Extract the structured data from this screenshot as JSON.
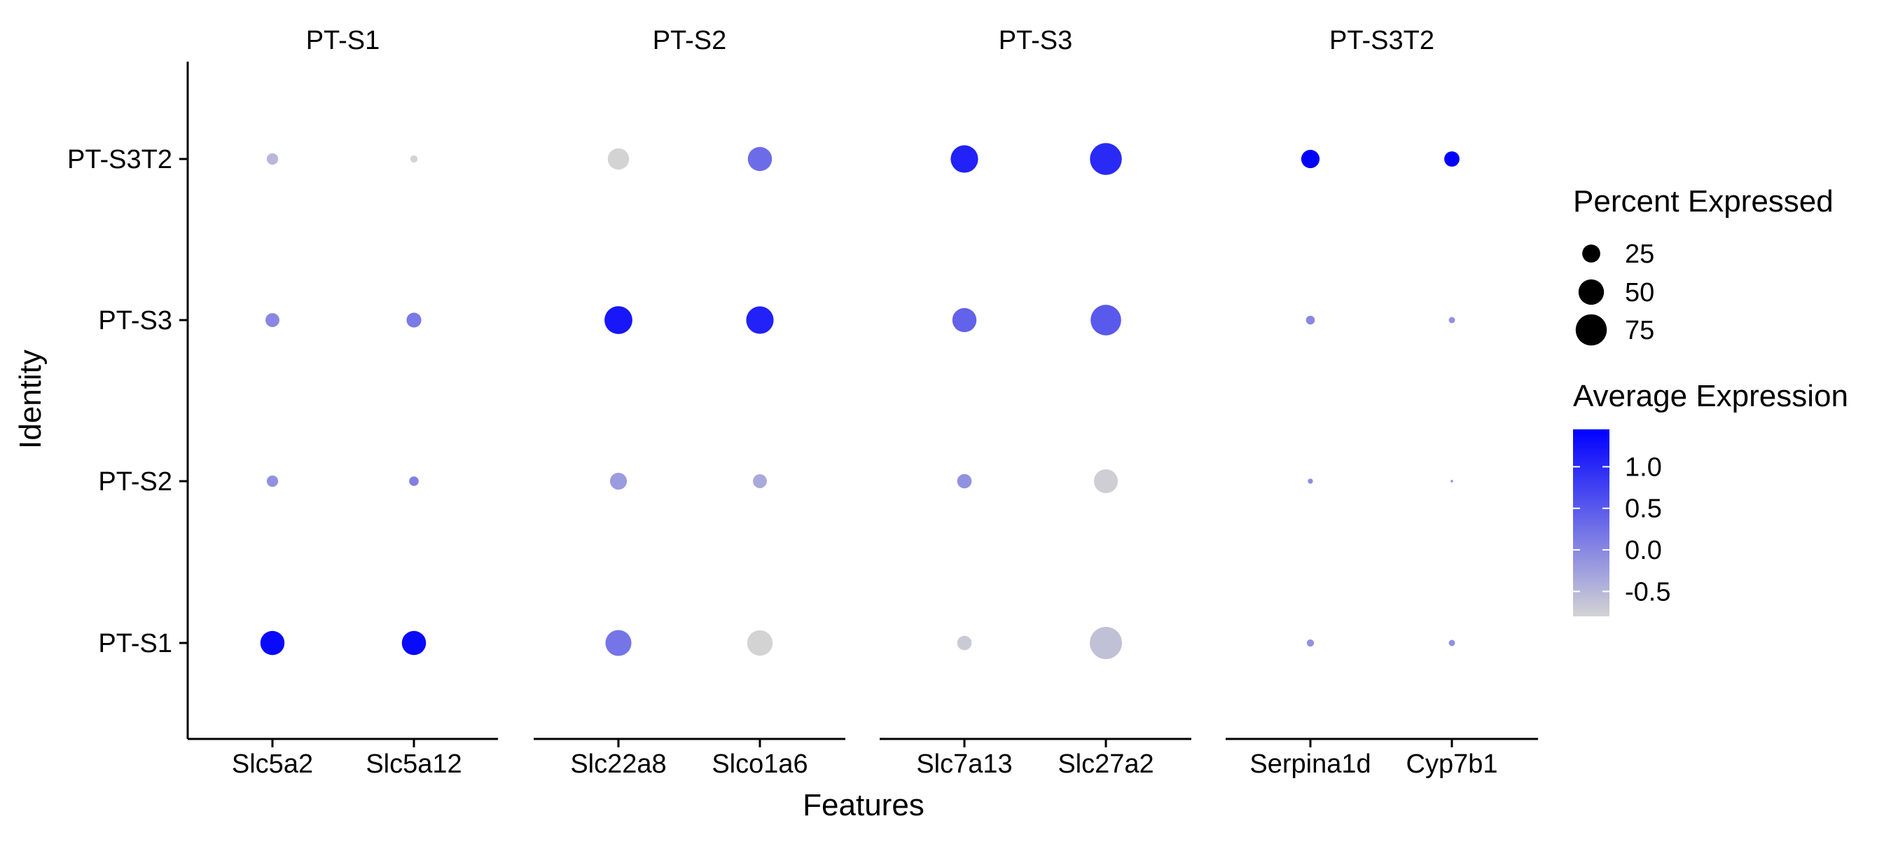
{
  "chart_data": {
    "type": "dotplot",
    "xlabel": "Features",
    "ylabel": "Identity",
    "identities": [
      "PT-S1",
      "PT-S2",
      "PT-S3",
      "PT-S3T2"
    ],
    "groups": [
      {
        "name": "PT-S1",
        "features": [
          "Slc5a2",
          "Slc5a12"
        ]
      },
      {
        "name": "PT-S2",
        "features": [
          "Slc22a8",
          "Slco1a6"
        ]
      },
      {
        "name": "PT-S3",
        "features": [
          "Slc7a13",
          "Slc27a2"
        ]
      },
      {
        "name": "PT-S3T2",
        "features": [
          "Serpina1d",
          "Cyp7b1"
        ]
      }
    ],
    "features": [
      "Slc5a2",
      "Slc5a12",
      "Slc22a8",
      "Slco1a6",
      "Slc7a13",
      "Slc27a2",
      "Serpina1d",
      "Cyp7b1"
    ],
    "points": [
      {
        "feature": "Slc5a2",
        "identity": "PT-S1",
        "pct": 45,
        "avg": 1.35
      },
      {
        "feature": "Slc5a2",
        "identity": "PT-S2",
        "pct": 10,
        "avg": -0.1
      },
      {
        "feature": "Slc5a2",
        "identity": "PT-S3",
        "pct": 15,
        "avg": 0.0
      },
      {
        "feature": "Slc5a2",
        "identity": "PT-S3T2",
        "pct": 10,
        "avg": -0.5
      },
      {
        "feature": "Slc5a12",
        "identity": "PT-S1",
        "pct": 45,
        "avg": 1.35
      },
      {
        "feature": "Slc5a12",
        "identity": "PT-S2",
        "pct": 7,
        "avg": 0.1
      },
      {
        "feature": "Slc5a12",
        "identity": "PT-S3",
        "pct": 17,
        "avg": 0.15
      },
      {
        "feature": "Slc5a12",
        "identity": "PT-S3T2",
        "pct": 4,
        "avg": -0.8
      },
      {
        "feature": "Slc22a8",
        "identity": "PT-S1",
        "pct": 52,
        "avg": 0.2
      },
      {
        "feature": "Slc22a8",
        "identity": "PT-S2",
        "pct": 22,
        "avg": -0.2
      },
      {
        "feature": "Slc22a8",
        "identity": "PT-S3",
        "pct": 60,
        "avg": 1.2
      },
      {
        "feature": "Slc22a8",
        "identity": "PT-S3T2",
        "pct": 35,
        "avg": -0.8
      },
      {
        "feature": "Slco1a6",
        "identity": "PT-S1",
        "pct": 50,
        "avg": -0.8
      },
      {
        "feature": "Slco1a6",
        "identity": "PT-S2",
        "pct": 15,
        "avg": -0.35
      },
      {
        "feature": "Slco1a6",
        "identity": "PT-S3",
        "pct": 58,
        "avg": 1.1
      },
      {
        "feature": "Slco1a6",
        "identity": "PT-S3T2",
        "pct": 45,
        "avg": 0.3
      },
      {
        "feature": "Slc7a13",
        "identity": "PT-S1",
        "pct": 16,
        "avg": -0.7
      },
      {
        "feature": "Slc7a13",
        "identity": "PT-S2",
        "pct": 16,
        "avg": -0.1
      },
      {
        "feature": "Slc7a13",
        "identity": "PT-S3",
        "pct": 45,
        "avg": 0.4
      },
      {
        "feature": "Slc7a13",
        "identity": "PT-S3T2",
        "pct": 58,
        "avg": 1.1
      },
      {
        "feature": "Slc27a2",
        "identity": "PT-S1",
        "pct": 80,
        "avg": -0.6
      },
      {
        "feature": "Slc27a2",
        "identity": "PT-S2",
        "pct": 44,
        "avg": -0.75
      },
      {
        "feature": "Slc27a2",
        "identity": "PT-S3",
        "pct": 72,
        "avg": 0.5
      },
      {
        "feature": "Slc27a2",
        "identity": "PT-S3T2",
        "pct": 78,
        "avg": 1.0
      },
      {
        "feature": "Serpina1d",
        "identity": "PT-S1",
        "pct": 4,
        "avg": -0.1
      },
      {
        "feature": "Serpina1d",
        "identity": "PT-S2",
        "pct": 2,
        "avg": -0.05
      },
      {
        "feature": "Serpina1d",
        "identity": "PT-S3",
        "pct": 6,
        "avg": 0.0
      },
      {
        "feature": "Serpina1d",
        "identity": "PT-S3T2",
        "pct": 26,
        "avg": 1.45
      },
      {
        "feature": "Cyp7b1",
        "identity": "PT-S1",
        "pct": 3,
        "avg": -0.1
      },
      {
        "feature": "Cyp7b1",
        "identity": "PT-S2",
        "pct": 0.5,
        "avg": -0.1
      },
      {
        "feature": "Cyp7b1",
        "identity": "PT-S3",
        "pct": 3,
        "avg": -0.1
      },
      {
        "feature": "Cyp7b1",
        "identity": "PT-S3T2",
        "pct": 18,
        "avg": 1.45
      }
    ],
    "size_legend": {
      "title": "Percent Expressed",
      "values": [
        25,
        50,
        75
      ],
      "labels": [
        "25",
        "50",
        "75"
      ]
    },
    "color_legend": {
      "title": "Average Expression",
      "breaks": [
        1.0,
        0.5,
        0.0,
        -0.5
      ],
      "labels": [
        "1.0",
        "0.5",
        "0.0",
        "-0.5"
      ],
      "range": [
        -0.8,
        1.45
      ],
      "low_color": "#d3d3d3",
      "high_color": "#0000ff"
    },
    "legend_position": "right",
    "grid": false
  }
}
